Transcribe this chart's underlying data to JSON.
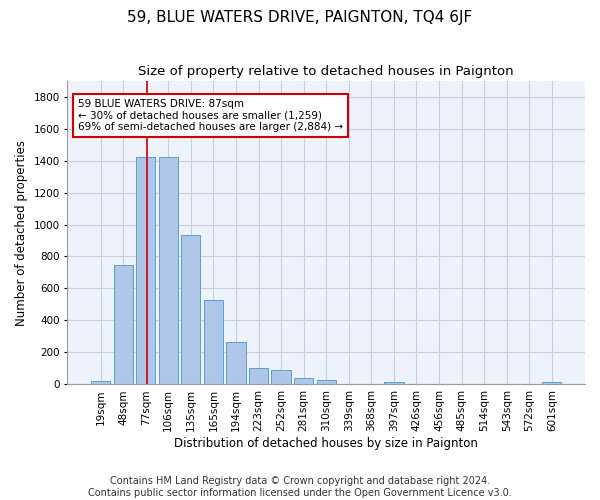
{
  "title": "59, BLUE WATERS DRIVE, PAIGNTON, TQ4 6JF",
  "subtitle": "Size of property relative to detached houses in Paignton",
  "xlabel": "Distribution of detached houses by size in Paignton",
  "ylabel": "Number of detached properties",
  "categories": [
    "19sqm",
    "48sqm",
    "77sqm",
    "106sqm",
    "135sqm",
    "165sqm",
    "194sqm",
    "223sqm",
    "252sqm",
    "281sqm",
    "310sqm",
    "339sqm",
    "368sqm",
    "397sqm",
    "426sqm",
    "456sqm",
    "485sqm",
    "514sqm",
    "543sqm",
    "572sqm",
    "601sqm"
  ],
  "values": [
    22,
    748,
    1424,
    1424,
    937,
    531,
    264,
    104,
    92,
    38,
    27,
    0,
    0,
    14,
    0,
    0,
    0,
    0,
    0,
    0,
    14
  ],
  "bar_color": "#aec6e8",
  "bar_edge_color": "#5a9fd4",
  "vline_x_index": 2.08,
  "annotation_text": "59 BLUE WATERS DRIVE: 87sqm\n← 30% of detached houses are smaller (1,259)\n69% of semi-detached houses are larger (2,884) →",
  "annotation_box_color": "#ffffff",
  "annotation_box_edge_color": "#cc0000",
  "grid_color": "#c8d0e0",
  "background_color": "#eef2fa",
  "footer": "Contains HM Land Registry data © Crown copyright and database right 2024.\nContains public sector information licensed under the Open Government Licence v3.0.",
  "ylim": [
    0,
    1900
  ],
  "yticks": [
    0,
    200,
    400,
    600,
    800,
    1000,
    1200,
    1400,
    1600,
    1800
  ],
  "vline_color": "#cc0000",
  "title_fontsize": 11,
  "subtitle_fontsize": 9.5,
  "axis_label_fontsize": 8.5,
  "tick_fontsize": 7.5,
  "annotation_fontsize": 7.5,
  "footer_fontsize": 7
}
